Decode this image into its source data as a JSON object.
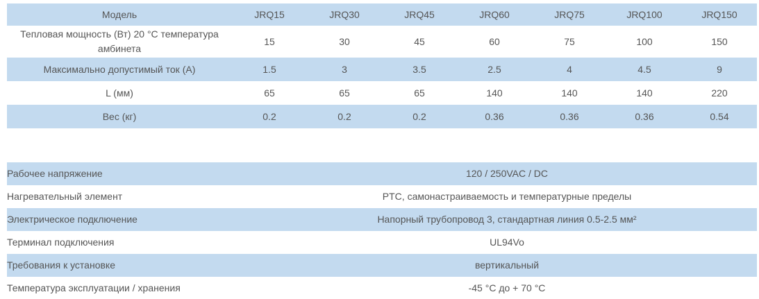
{
  "models_table": {
    "header": {
      "label": "Модель",
      "columns": [
        "JRQ15",
        "JRQ30",
        "JRQ45",
        "JRQ60",
        "JRQ75",
        "JRQ100",
        "JRQ150"
      ]
    },
    "rows": [
      {
        "label": "Тепловая мощность (Вт) 20 °C температура амбинета",
        "values": [
          "15",
          "30",
          "45",
          "60",
          "75",
          "100",
          "150"
        ]
      },
      {
        "label": "Максимально допустимый ток (А)",
        "values": [
          "1.5",
          "3",
          "3.5",
          "2.5",
          "4",
          "4.5",
          "9"
        ]
      },
      {
        "label": "L (мм)",
        "values": [
          "65",
          "65",
          "65",
          "140",
          "140",
          "140",
          "220"
        ]
      },
      {
        "label": "Вес (кг)",
        "values": [
          "0.2",
          "0.2",
          "0.2",
          "0.36",
          "0.36",
          "0.36",
          "0.54"
        ]
      }
    ]
  },
  "properties_table": {
    "rows": [
      {
        "label": "Рабочее напряжение",
        "value": "120 / 250VAC / DC"
      },
      {
        "label": "Нагревательный элемент",
        "value": "PTC, самонастраиваемость и температурные пределы"
      },
      {
        "label": "Электрическое подключение",
        "value": "Напорный трубопровод 3, стандартная линия 0.5-2.5 мм²"
      },
      {
        "label": "Терминал подключения",
        "value": "UL94Vo"
      },
      {
        "label": "Требования к установке",
        "value": "вертикальный"
      },
      {
        "label": "Температура эксплуатации / хранения",
        "value": "-45 °C до + 70 °C"
      }
    ]
  },
  "colors": {
    "shade_row": "#c3daef",
    "text": "#555555"
  }
}
